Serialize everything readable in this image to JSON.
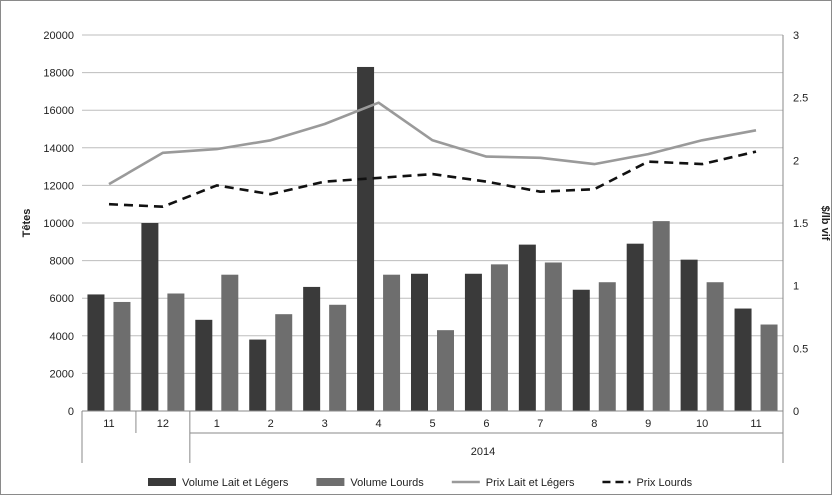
{
  "chart_data": {
    "type": "bar",
    "categories": [
      "11",
      "12",
      "1",
      "2",
      "3",
      "4",
      "5",
      "6",
      "7",
      "8",
      "9",
      "10",
      "11"
    ],
    "year_group": "2014",
    "year_group_span": [
      2,
      12
    ],
    "ylabel": "Têtes",
    "ylabel_right": "$/lb vif",
    "ylim": [
      0,
      20000
    ],
    "yticks": [
      "0",
      "2000",
      "4000",
      "6000",
      "8000",
      "10000",
      "12000",
      "14000",
      "16000",
      "18000",
      "20000"
    ],
    "ylim_right": [
      0,
      3
    ],
    "yticks_right": [
      "0",
      "0.5",
      "1",
      "1.5",
      "2",
      "2.5",
      "3"
    ],
    "grid": true,
    "legend_position": "bottom",
    "series": [
      {
        "name": "Volume Lait et Légers",
        "kind": "bar",
        "axis": "left",
        "color": "#3a3a3a",
        "values": [
          6200,
          10000,
          4850,
          3800,
          6600,
          18300,
          7300,
          7300,
          8850,
          6450,
          8900,
          8050,
          5450
        ]
      },
      {
        "name": "Volume Lourds",
        "kind": "bar",
        "axis": "left",
        "color": "#6e6e6e",
        "values": [
          5800,
          6250,
          7250,
          5150,
          5650,
          7250,
          4300,
          7800,
          7900,
          6850,
          10100,
          6850,
          4600
        ]
      },
      {
        "name": "Prix Lait et Légers",
        "kind": "line",
        "axis": "right",
        "color": "#9a9a9a",
        "dash": "solid",
        "values": [
          1.81,
          2.06,
          2.09,
          2.16,
          2.29,
          2.46,
          2.16,
          2.03,
          2.02,
          1.97,
          2.05,
          2.16,
          2.24
        ]
      },
      {
        "name": "Prix Lourds",
        "kind": "line",
        "axis": "right",
        "color": "#111111",
        "dash": "dashed",
        "values": [
          1.65,
          1.63,
          1.8,
          1.73,
          1.83,
          1.86,
          1.89,
          1.83,
          1.75,
          1.77,
          1.99,
          1.97,
          2.07
        ]
      }
    ]
  }
}
